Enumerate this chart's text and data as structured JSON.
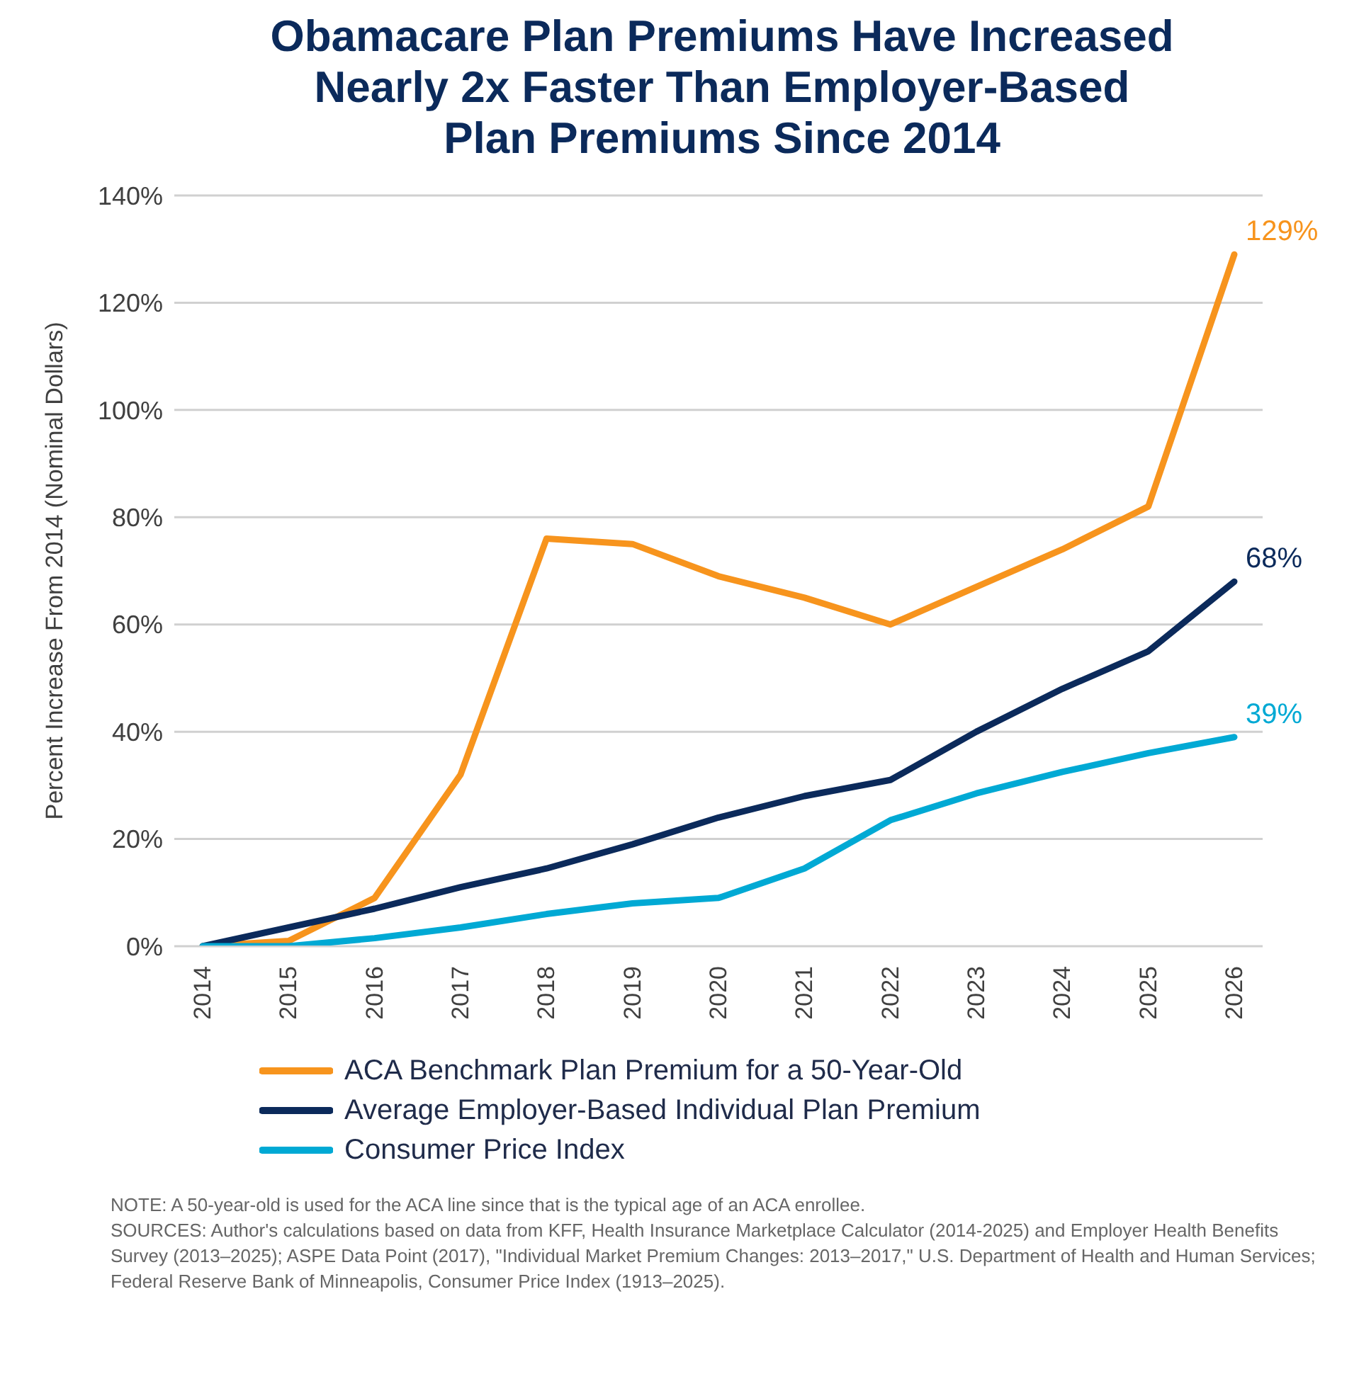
{
  "chart_data": {
    "type": "line",
    "title": "Obamacare Plan Premiums Have Increased Nearly 2x Faster Than Employer-Based Plan Premiums Since 2014",
    "ylabel": "Percent Increase From 2014 (Nominal Dollars)",
    "categories": [
      "2014",
      "2015",
      "2016",
      "2017",
      "2018",
      "2019",
      "2020",
      "2021",
      "2022",
      "2023",
      "2024",
      "2025",
      "2026"
    ],
    "series": [
      {
        "name": "ACA Benchmark Plan Premium for a 50-Year-Old",
        "color": "#f7941d",
        "values": [
          0,
          1,
          9,
          32,
          76,
          75,
          69,
          65,
          60,
          67,
          74,
          82,
          129
        ],
        "value_labels": [
          null,
          null,
          null,
          null,
          null,
          null,
          null,
          null,
          null,
          null,
          null,
          null,
          "129%"
        ]
      },
      {
        "name": "Average Employer-Based Individual Plan Premium",
        "color": "#0b2a5b",
        "values": [
          0,
          3.5,
          7,
          11,
          14.5,
          19,
          24,
          28,
          31,
          40,
          48,
          55,
          68
        ],
        "value_labels": [
          null,
          null,
          null,
          null,
          null,
          null,
          null,
          null,
          null,
          null,
          null,
          null,
          "68%"
        ]
      },
      {
        "name": "Consumer Price Index",
        "color": "#00a9d4",
        "values": [
          0,
          0,
          1.5,
          3.5,
          6,
          8,
          9,
          14.5,
          23.5,
          28.5,
          32.5,
          36,
          39
        ],
        "value_labels": [
          null,
          null,
          null,
          null,
          null,
          null,
          null,
          null,
          null,
          null,
          null,
          null,
          "39%"
        ]
      }
    ],
    "ylim": [
      0,
      140
    ],
    "yticks": [
      {
        "value": 0,
        "label": "0%"
      },
      {
        "value": 20,
        "label": "20%"
      },
      {
        "value": 40,
        "label": "40%"
      },
      {
        "value": 60,
        "label": "60%"
      },
      {
        "value": 80,
        "label": "80%"
      },
      {
        "value": 100,
        "label": "100%"
      },
      {
        "value": 120,
        "label": "120%"
      },
      {
        "value": 140,
        "label": "140%"
      }
    ],
    "grid": "y",
    "legend": "bottom",
    "marker": "none",
    "line_style": "solid",
    "annotations": [
      "NOTE: A 50-year-old is used for the ACA line since that is the typical age of an ACA enrollee.",
      "SOURCES: Author's calculations based on data from KFF, Health Insurance Marketplace Calculator (2014-2025) and Employer Health Benefits Survey (2013–2025); ASPE Data Point (2017), \"Individual Market Premium Changes: 2013–2017,\" U.S. Department of Health and Human Services; Federal Reserve Bank of Minneapolis, Consumer Price Index (1913–2025)."
    ]
  }
}
